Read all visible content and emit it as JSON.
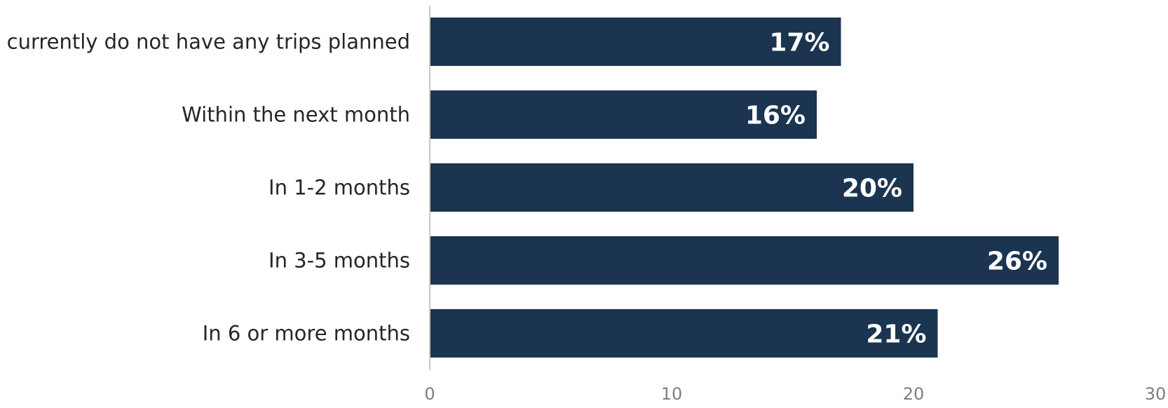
{
  "chart_data": {
    "type": "bar",
    "orientation": "horizontal",
    "categories": [
      "I currently do not have any trips planned",
      "Within the next month",
      "In 1-2 months",
      "In 3-5 months",
      "In 6 or more months"
    ],
    "values": [
      17,
      16,
      20,
      26,
      21
    ],
    "data_labels": [
      "17%",
      "16%",
      "20%",
      "26%",
      "21%"
    ],
    "xlim": [
      0,
      30
    ],
    "x_ticks": [
      "0",
      "10",
      "20",
      "30"
    ],
    "grid": false,
    "legend": "none",
    "colors": {
      "bar": "#1b344f",
      "data_label": "#ffffff",
      "category_label": "#262626",
      "tick_label": "#7f7f7f",
      "axis_line": "#c8c8c8"
    }
  }
}
